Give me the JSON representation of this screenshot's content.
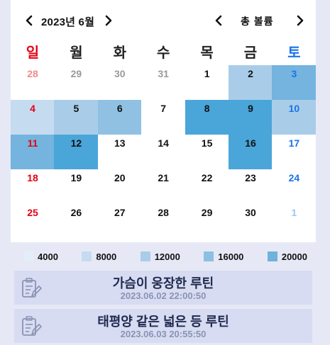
{
  "header": {
    "month_label": "2023년 6월",
    "metric_label": "총 볼륨"
  },
  "weekdays": [
    "일",
    "월",
    "화",
    "수",
    "목",
    "금",
    "토"
  ],
  "colors": {
    "sunday": "#e60012",
    "saturday": "#1a73e8",
    "other_month": "#9a9a9a",
    "sunday_other_month": "#f08a8a",
    "saturday_other_month": "#9fc6f0",
    "normal": "#111111"
  },
  "calendar": {
    "weeks": [
      [
        {
          "day": "28",
          "other": true
        },
        {
          "day": "29",
          "other": true
        },
        {
          "day": "30",
          "other": true
        },
        {
          "day": "31",
          "other": true
        },
        {
          "day": "1",
          "level": 0
        },
        {
          "day": "2",
          "level": 3
        },
        {
          "day": "3",
          "level": 5
        }
      ],
      [
        {
          "day": "4",
          "level": 2
        },
        {
          "day": "5",
          "level": 3
        },
        {
          "day": "6",
          "level": 4
        },
        {
          "day": "7",
          "level": 0
        },
        {
          "day": "8",
          "level": 6
        },
        {
          "day": "9",
          "level": 6
        },
        {
          "day": "10",
          "level": 3
        }
      ],
      [
        {
          "day": "11",
          "level": 5
        },
        {
          "day": "12",
          "level": 6
        },
        {
          "day": "13",
          "level": 0
        },
        {
          "day": "14",
          "level": 0
        },
        {
          "day": "15",
          "level": 0
        },
        {
          "day": "16",
          "level": 6
        },
        {
          "day": "17",
          "level": 0
        }
      ],
      [
        {
          "day": "18",
          "level": 0
        },
        {
          "day": "19",
          "level": 0
        },
        {
          "day": "20",
          "level": 0
        },
        {
          "day": "21",
          "level": 0
        },
        {
          "day": "22",
          "level": 0
        },
        {
          "day": "23",
          "level": 0
        },
        {
          "day": "24",
          "level": 0
        }
      ],
      [
        {
          "day": "25",
          "level": 0
        },
        {
          "day": "26",
          "level": 0
        },
        {
          "day": "27",
          "level": 0
        },
        {
          "day": "28",
          "level": 0
        },
        {
          "day": "29",
          "level": 0
        },
        {
          "day": "30",
          "level": 0
        },
        {
          "day": "1",
          "other": true
        }
      ]
    ],
    "level_colors": [
      "#ffffff",
      "#e3eef8",
      "#c5dcf0",
      "#a9cde9",
      "#90c1e3",
      "#74b4de",
      "#4aa5d9"
    ]
  },
  "legend": [
    {
      "label": "4000",
      "color": "#e3eef8"
    },
    {
      "label": "8000",
      "color": "#c5dcf0"
    },
    {
      "label": "12000",
      "color": "#a9cde9"
    },
    {
      "label": "16000",
      "color": "#8dbfe2"
    },
    {
      "label": "20000",
      "color": "#6fb2dc"
    }
  ],
  "routines": [
    {
      "title": "가슴이 웅장한 루틴",
      "date": "2023.06.02 22:00:50"
    },
    {
      "title": "태평양 같은 넓은 등 루틴",
      "date": "2023.06.03 20:55:50"
    }
  ]
}
